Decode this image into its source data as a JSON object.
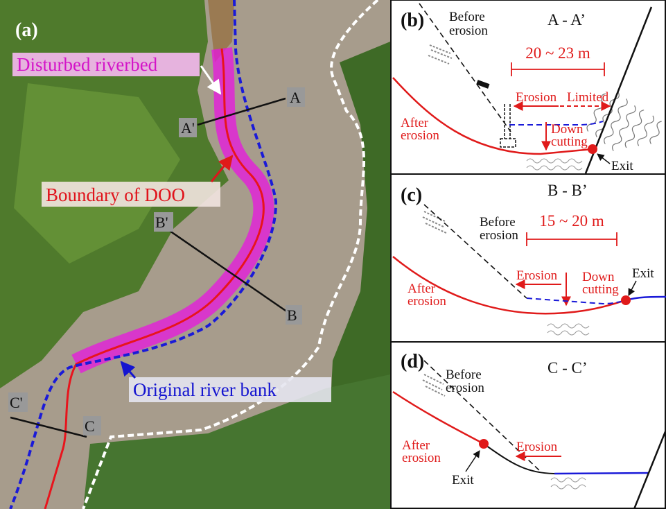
{
  "panel_a": {
    "label": "(a)",
    "disturbed_riverbed": "Disturbed riverbed",
    "boundary": "Boundary of DOO",
    "original_bank": "Original river bank",
    "sections": [
      {
        "start": "A'",
        "end": "A"
      },
      {
        "start": "B'",
        "end": "B"
      },
      {
        "start": "C'",
        "end": "C"
      }
    ]
  },
  "panel_b": {
    "label": "(b)",
    "section": "A - A’",
    "before_erosion": [
      "Before",
      "erosion"
    ],
    "width": "20 ~ 23 m",
    "erosion": "Erosion",
    "limited": "Limited",
    "after_erosion": [
      "After",
      "erosion"
    ],
    "down_cutting": [
      "Down",
      "cutting"
    ],
    "exit": "Exit"
  },
  "panel_c": {
    "label": "(c)",
    "section": "B - B’",
    "before_erosion": [
      "Before",
      "erosion"
    ],
    "width": "15 ~ 20 m",
    "erosion": "Erosion",
    "down_cutting": [
      "Down",
      "cutting"
    ],
    "after_erosion": [
      "After",
      "erosion"
    ],
    "exit": "Exit"
  },
  "panel_d": {
    "label": "(d)",
    "section": "C - C’",
    "before_erosion": [
      "Before",
      "erosion"
    ],
    "after_erosion": [
      "After",
      "erosion"
    ],
    "erosion": "Erosion",
    "exit": "Exit"
  }
}
